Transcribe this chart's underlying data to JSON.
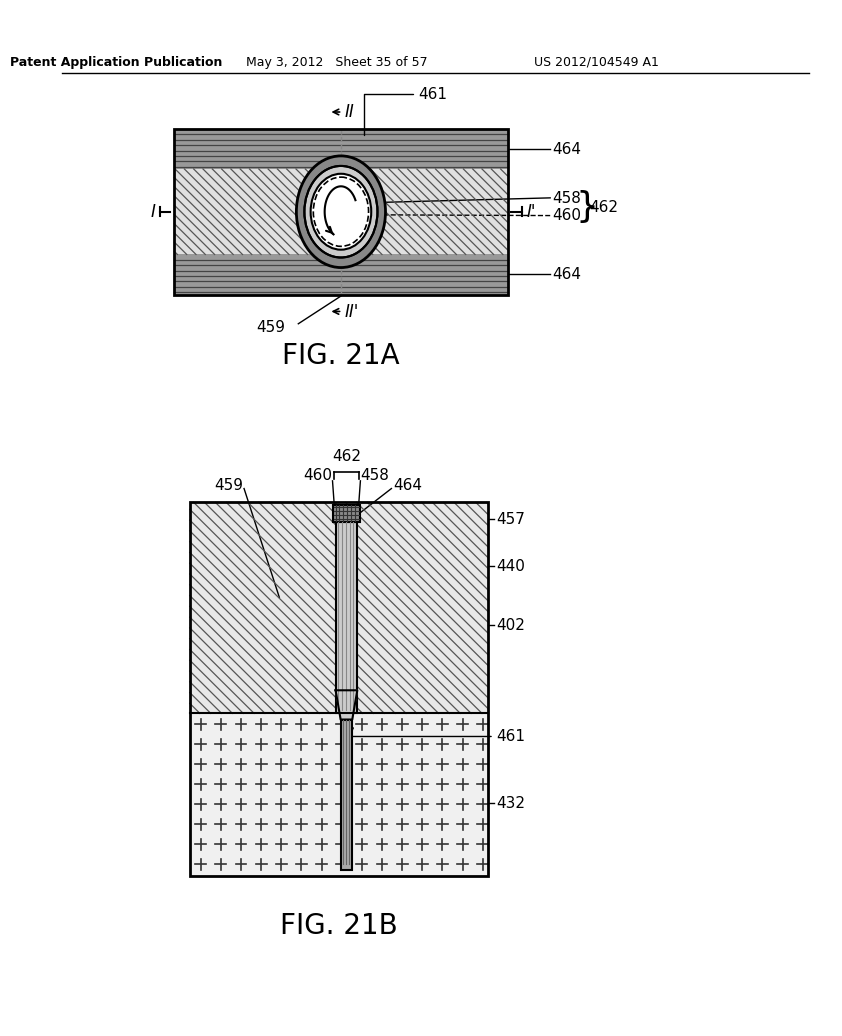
{
  "header_left": "Patent Application Publication",
  "header_mid": "May 3, 2012   Sheet 35 of 57",
  "header_right": "US 2012/104549 A1",
  "fig_a_label": "FIG. 21A",
  "fig_b_label": "FIG. 21B",
  "bg_color": "#ffffff",
  "line_color": "#000000"
}
